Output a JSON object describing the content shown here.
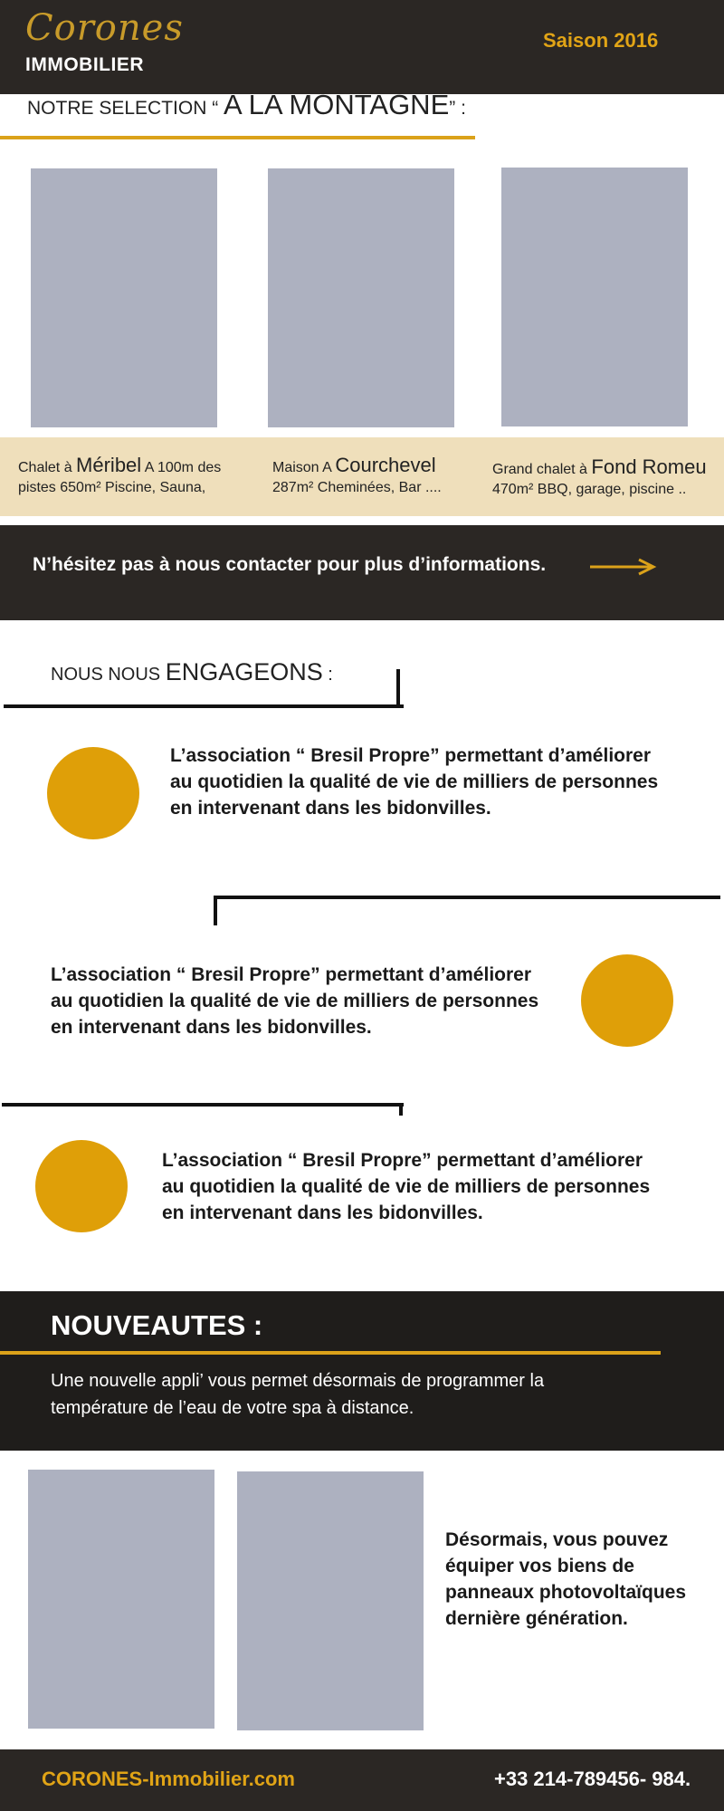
{
  "header": {
    "logo_script": "Corones",
    "logo_sub": "IMMOBILIER",
    "season": "Saison 2016"
  },
  "selection": {
    "title_prefix": "NOTRE SELECTION “ ",
    "title_big": "A LA MONTAGNE",
    "title_suffix": "” :",
    "items": [
      {
        "line1_pre": "Chalet à ",
        "line1_highlight": "Méribel",
        "line1_post": " A 100m des",
        "line2": "pistes  650m² Piscine, Sauna,"
      },
      {
        "line1_pre": "Maison A ",
        "line1_highlight": "Courchevel",
        "line1_post": "",
        "line2": "287m² Cheminées, Bar ...."
      },
      {
        "line1_pre": "Grand chalet à ",
        "line1_highlight": "Fond Romeu",
        "line1_post": "",
        "line2": "470m² BBQ, garage, piscine .."
      }
    ]
  },
  "contact": {
    "text": "N’hésitez pas à nous contacter pour plus d’informations.",
    "arrow_icon": "arrow-right-icon"
  },
  "engagements": {
    "title_prefix": "NOUS NOUS ",
    "title_big": "ENGAGEONS",
    "title_suffix": " :",
    "items": [
      {
        "lines": [
          "L’association “ Bresil Propre” permettant d’améliorer",
          "au quotidien la qualité de vie de milliers de personnes",
          "en intervenant dans les bidonvilles."
        ]
      },
      {
        "lines": [
          "L’association “ Bresil Propre” permettant d’améliorer",
          "au quotidien la qualité de vie de milliers de personnes",
          "en intervenant dans les bidonvilles."
        ]
      },
      {
        "lines": [
          "L’association “ Bresil Propre” permettant d’améliorer",
          "au quotidien la qualité de vie de milliers de personnes",
          "en intervenant dans les bidonvilles."
        ]
      }
    ]
  },
  "nouveautes": {
    "title": "NOUVEAUTES :",
    "lines": [
      "Une nouvelle appli’ vous permet  désormais de programmer la",
      "température de l’eau  de votre spa à distance."
    ]
  },
  "solar": {
    "lines": [
      "Désormais, vous pouvez",
      "équiper vos biens de",
      "panneaux photovoltaïques",
      "dernière génération."
    ]
  },
  "footer": {
    "website": "CORONES-Immobilier.com",
    "phone": "+33 214-789456- 984."
  },
  "colors": {
    "dark": "#2b2724",
    "gold": "#dba21a",
    "circle": "#df9f08",
    "beige": "#efdfbb",
    "placeholder": "#adb1c0"
  }
}
